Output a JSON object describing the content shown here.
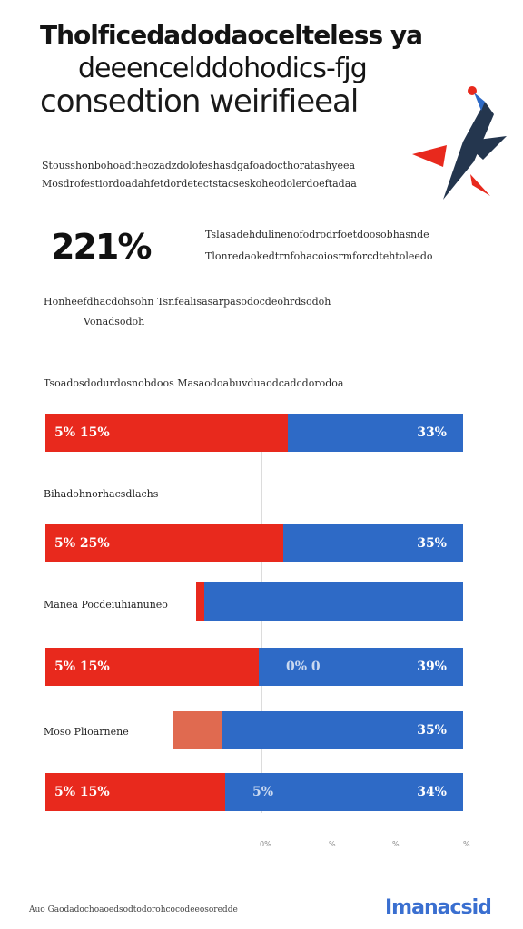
{
  "title": {
    "line1": "Tholficedadodaocelteless ya",
    "line2": "deeencelddohodics-fjg",
    "line3": "consedtion weirifieeal"
  },
  "intro": {
    "line1": "Stousshonbohoadtheozadzdolofeshasdgafoadocthoratashyeea",
    "line2": "Mosdrofestiordoadahfetdordetectstacseskoheodolerdoeftadaa"
  },
  "stat": {
    "value": "221%",
    "desc_line1": "Tslasadehdulinenofodrodrfoetdoosobhasnde",
    "desc_line2": "Tlonredaokedtrnfohacoiosrmforcdtehtoleedo"
  },
  "note": {
    "line1": "Honheefdhacdohsohn Tsnfealisasarpasodocdeohrdsodoh",
    "line2": "Vonadsodoh"
  },
  "chart_section_heading": "Tsoadosdodurdosnobdoos Masaodoabuvduaodcadcdorodoa",
  "chart_data": {
    "type": "bar",
    "orientation": "horizontal",
    "stacked": true,
    "rows": [
      {
        "category": "",
        "red_label": "5% 15%",
        "blue_label": "33%",
        "red_fraction": 0.58,
        "blue_fraction": 0.42
      },
      {
        "category": "Bihadohnorhacsdlachs",
        "red_label": "5% 25%",
        "blue_label": "35%",
        "red_fraction": 0.57,
        "blue_fraction": 0.43
      },
      {
        "category": "Manea Pocdeiuhianuneo",
        "red_label": "",
        "blue_label": "",
        "red_fraction": 0.03,
        "blue_fraction": 0.97
      },
      {
        "category": "",
        "red_label": "5% 15%",
        "blue_label": "39%",
        "mid_label": "0% 0",
        "red_fraction": 0.51,
        "blue_fraction": 0.49
      },
      {
        "category": "Moso Plioarnene",
        "red_label": "",
        "blue_label": "35%",
        "red_fraction": 0.17,
        "blue_fraction": 0.83
      },
      {
        "category": "",
        "red_label": "5% 15%",
        "blue_label": "34%",
        "mid_label": "5%",
        "red_fraction": 0.43,
        "blue_fraction": 0.57
      }
    ],
    "x_ticks": [
      "0%",
      "%",
      "%",
      "%"
    ],
    "gridlines": true
  },
  "footer": {
    "source": "Auo Gaodadochoaoedsodtodorohcocodeeosoredde",
    "brand": "Imanacsid"
  },
  "colors": {
    "red": "#e8291d",
    "blue": "#2e6ac6",
    "orange": "#e06a50",
    "brand": "#3a6fd0"
  },
  "illustration": "rocket-illustration"
}
